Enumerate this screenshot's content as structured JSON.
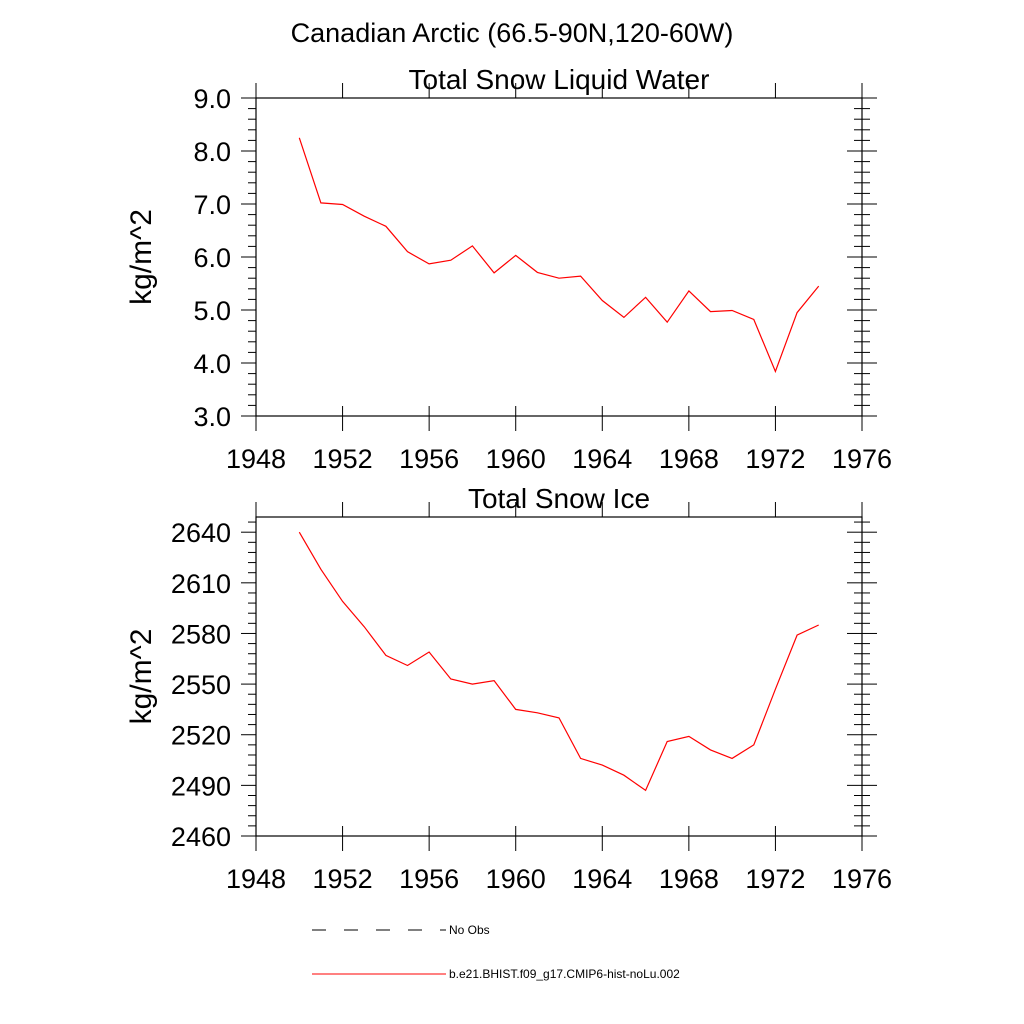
{
  "figure_title": "Canadian Arctic (66.5-90N,120-60W)",
  "colors": {
    "model": "#ff0000",
    "obs": "#000000",
    "axis": "#000000"
  },
  "legend": {
    "obs_label": "No Obs",
    "model_label": "b.e21.BHIST.f09_g17.CMIP6-hist-noLu.002"
  },
  "chart_data": [
    {
      "type": "line",
      "title": "Total Snow Liquid Water",
      "xlabel": "",
      "ylabel": "kg/m^2",
      "xlim": [
        1948,
        1976
      ],
      "ylim": [
        3.0,
        9.0
      ],
      "xticks": [
        1948,
        1952,
        1956,
        1960,
        1964,
        1968,
        1972,
        1976
      ],
      "yticks": [
        3.0,
        4.0,
        5.0,
        6.0,
        7.0,
        8.0,
        9.0
      ],
      "ytick_labels": [
        "3.0",
        "4.0",
        "5.0",
        "6.0",
        "7.0",
        "8.0",
        "9.0"
      ],
      "xtick_labels": [
        "1948",
        "1952",
        "1956",
        "1960",
        "1964",
        "1968",
        "1972",
        "1976"
      ],
      "series": [
        {
          "x": [
            1950,
            1951,
            1952,
            1953,
            1954,
            1955,
            1956,
            1957,
            1958,
            1959,
            1960,
            1961,
            1962,
            1963,
            1964,
            1965,
            1966,
            1967,
            1968,
            1969,
            1970,
            1971,
            1972,
            1973,
            1974
          ],
          "values": [
            8.25,
            7.02,
            6.99,
            6.77,
            6.58,
            6.1,
            5.87,
            5.94,
            6.21,
            5.7,
            6.03,
            5.71,
            5.6,
            5.64,
            5.18,
            4.86,
            5.24,
            4.77,
            5.36,
            4.97,
            4.99,
            4.82,
            3.84,
            4.95,
            5.45
          ]
        }
      ]
    },
    {
      "type": "line",
      "title": "Total Snow Ice",
      "xlabel": "",
      "ylabel": "kg/m^2",
      "xlim": [
        1948,
        1976
      ],
      "ylim": [
        2460,
        2649
      ],
      "xticks": [
        1948,
        1952,
        1956,
        1960,
        1964,
        1968,
        1972,
        1976
      ],
      "yticks": [
        2460,
        2490,
        2520,
        2550,
        2580,
        2610,
        2640
      ],
      "ytick_labels": [
        "2460",
        "2490",
        "2520",
        "2550",
        "2580",
        "2610",
        "2640"
      ],
      "xtick_labels": [
        "1948",
        "1952",
        "1956",
        "1960",
        "1964",
        "1968",
        "1972",
        "1976"
      ],
      "series": [
        {
          "x": [
            1950,
            1951,
            1952,
            1953,
            1954,
            1955,
            1956,
            1957,
            1958,
            1959,
            1960,
            1961,
            1962,
            1963,
            1964,
            1965,
            1966,
            1967,
            1968,
            1969,
            1970,
            1971,
            1972,
            1973,
            1974
          ],
          "values": [
            2640,
            2618,
            2599,
            2584,
            2567,
            2561,
            2569,
            2553,
            2550,
            2552,
            2535,
            2533,
            2530,
            2506,
            2502,
            2496,
            2487,
            2516,
            2519,
            2511,
            2506,
            2514,
            2547,
            2579,
            2585
          ]
        }
      ]
    }
  ]
}
